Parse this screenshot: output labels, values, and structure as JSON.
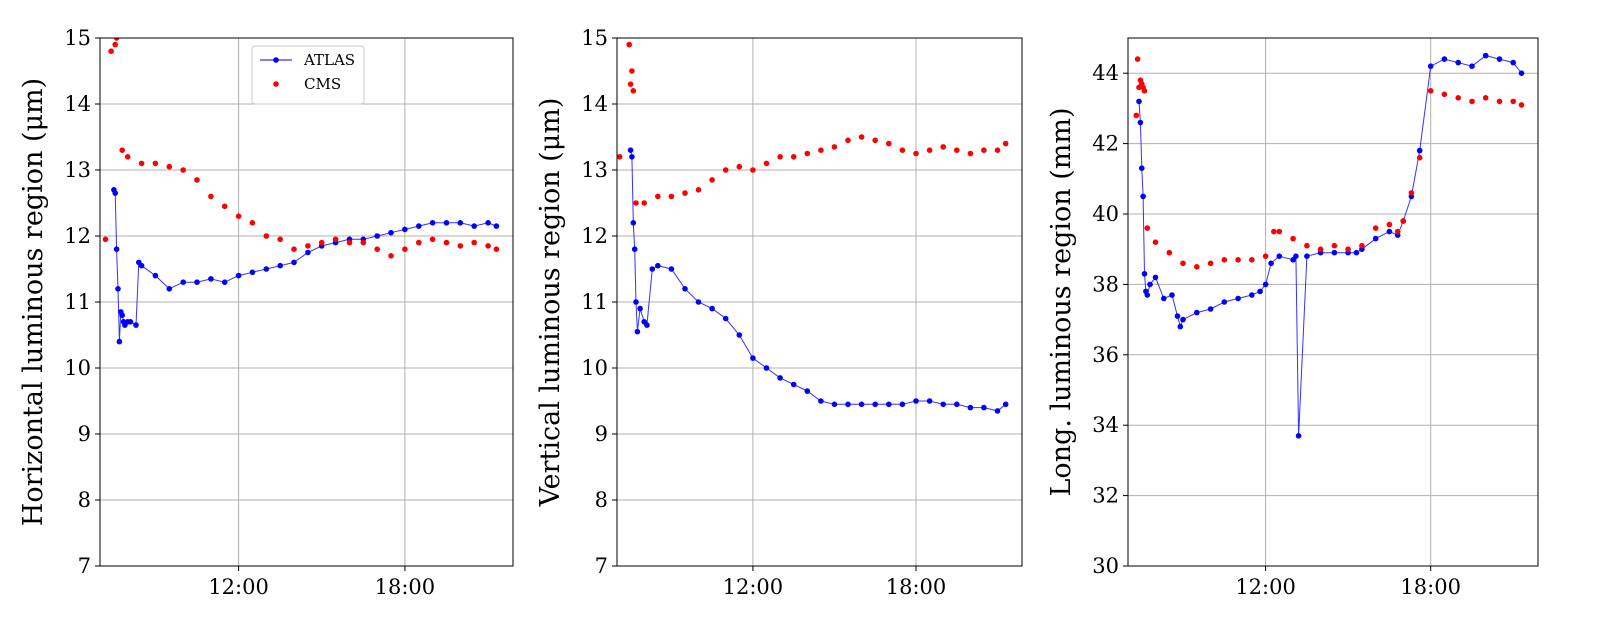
{
  "colors": {
    "atlas": "#0000ff",
    "cms": "#ff0000",
    "grid": "#b0b0b0"
  },
  "chart_data": [
    {
      "type": "line",
      "ylabel": "Horizontal luminous region (μm)",
      "ylim": [
        7,
        15
      ],
      "yticks": [
        "7",
        "8",
        "9",
        "10",
        "11",
        "12",
        "13",
        "14",
        "15"
      ],
      "xlim": [
        7.0,
        21.9
      ],
      "xticks": [
        {
          "hour": 12,
          "label": "12:00"
        },
        {
          "hour": 18,
          "label": "18:00"
        }
      ],
      "grid": true,
      "legend": {
        "placement": "top-center",
        "entries": [
          "ATLAS",
          "CMS"
        ]
      },
      "series": [
        {
          "name": "ATLAS",
          "style": "line-markers",
          "color": "#0000ff",
          "x": [
            7.5,
            7.55,
            7.6,
            7.65,
            7.7,
            7.75,
            7.8,
            7.85,
            7.9,
            8.0,
            8.1,
            8.3,
            8.4,
            8.5,
            9.0,
            9.5,
            10.0,
            10.5,
            11.0,
            11.5,
            12.0,
            12.5,
            13.0,
            13.5,
            14.0,
            14.5,
            15.0,
            15.5,
            16.0,
            16.5,
            17.0,
            17.5,
            18.0,
            18.5,
            19.0,
            19.5,
            20.0,
            20.5,
            21.0,
            21.3
          ],
          "y": [
            12.7,
            12.65,
            11.8,
            11.2,
            10.4,
            10.85,
            10.8,
            10.7,
            10.65,
            10.7,
            10.7,
            10.65,
            11.6,
            11.55,
            11.4,
            11.2,
            11.3,
            11.3,
            11.35,
            11.3,
            11.4,
            11.45,
            11.5,
            11.55,
            11.6,
            11.75,
            11.85,
            11.9,
            11.95,
            11.95,
            12.0,
            12.05,
            12.1,
            12.15,
            12.2,
            12.2,
            12.2,
            12.15,
            12.2,
            12.15
          ]
        },
        {
          "name": "CMS",
          "style": "markers",
          "color": "#ff0000",
          "x": [
            7.2,
            7.4,
            7.55,
            7.6,
            7.8,
            8.0,
            8.5,
            9.0,
            9.5,
            10.0,
            10.5,
            11.0,
            11.5,
            12.0,
            12.5,
            13.0,
            13.5,
            14.0,
            14.5,
            15.0,
            15.5,
            16.0,
            16.5,
            17.0,
            17.5,
            18.0,
            18.5,
            19.0,
            19.5,
            20.0,
            20.5,
            21.0,
            21.3
          ],
          "y": [
            11.95,
            14.8,
            14.9,
            15.0,
            13.3,
            13.2,
            13.1,
            13.1,
            13.05,
            13.0,
            12.85,
            12.6,
            12.45,
            12.3,
            12.2,
            12.0,
            11.95,
            11.8,
            11.85,
            11.9,
            11.95,
            11.9,
            11.9,
            11.8,
            11.7,
            11.8,
            11.9,
            11.95,
            11.9,
            11.85,
            11.9,
            11.85,
            11.8
          ]
        }
      ]
    },
    {
      "type": "line",
      "ylabel": "Vertical luminous region (μm)",
      "ylim": [
        7,
        15
      ],
      "yticks": [
        "7",
        "8",
        "9",
        "10",
        "11",
        "12",
        "13",
        "14",
        "15"
      ],
      "xlim": [
        7.0,
        21.9
      ],
      "xticks": [
        {
          "hour": 12,
          "label": "12:00"
        },
        {
          "hour": 18,
          "label": "18:00"
        }
      ],
      "grid": true,
      "series": [
        {
          "name": "ATLAS",
          "style": "line-markers",
          "color": "#0000ff",
          "x": [
            7.5,
            7.55,
            7.6,
            7.65,
            7.7,
            7.75,
            7.85,
            8.0,
            8.1,
            8.3,
            8.5,
            9.0,
            9.5,
            10.0,
            10.5,
            11.0,
            11.5,
            12.0,
            12.5,
            13.0,
            13.5,
            14.0,
            14.5,
            15.0,
            15.5,
            16.0,
            16.5,
            17.0,
            17.5,
            18.0,
            18.5,
            19.0,
            19.5,
            20.0,
            20.5,
            21.0,
            21.3
          ],
          "y": [
            13.3,
            13.2,
            12.2,
            11.8,
            11.0,
            10.55,
            10.9,
            10.7,
            10.65,
            11.5,
            11.55,
            11.5,
            11.2,
            11.0,
            10.9,
            10.75,
            10.5,
            10.15,
            10.0,
            9.85,
            9.75,
            9.65,
            9.5,
            9.45,
            9.45,
            9.45,
            9.45,
            9.45,
            9.45,
            9.5,
            9.5,
            9.45,
            9.45,
            9.4,
            9.4,
            9.35,
            9.45
          ]
        },
        {
          "name": "CMS",
          "style": "markers",
          "color": "#ff0000",
          "x": [
            7.1,
            7.45,
            7.5,
            7.55,
            7.6,
            7.7,
            8.0,
            8.5,
            9.0,
            9.5,
            10.0,
            10.5,
            11.0,
            11.5,
            12.0,
            12.5,
            13.0,
            13.5,
            14.0,
            14.5,
            15.0,
            15.5,
            16.0,
            16.5,
            17.0,
            17.5,
            18.0,
            18.5,
            19.0,
            19.5,
            20.0,
            20.5,
            21.0,
            21.3
          ],
          "y": [
            13.2,
            14.9,
            14.3,
            14.5,
            14.2,
            12.5,
            12.5,
            12.6,
            12.6,
            12.65,
            12.7,
            12.85,
            13.0,
            13.05,
            13.0,
            13.1,
            13.2,
            13.2,
            13.25,
            13.3,
            13.35,
            13.45,
            13.5,
            13.45,
            13.4,
            13.3,
            13.25,
            13.3,
            13.35,
            13.3,
            13.25,
            13.3,
            13.3,
            13.4
          ]
        }
      ]
    },
    {
      "type": "line",
      "ylabel": "Long. luminous region (mm)",
      "ylim": [
        30,
        45
      ],
      "yticks": [
        "30",
        "32",
        "34",
        "36",
        "38",
        "40",
        "42",
        "44"
      ],
      "xlim": [
        7.0,
        21.9
      ],
      "xticks": [
        {
          "hour": 12,
          "label": "12:00"
        },
        {
          "hour": 18,
          "label": "18:00"
        }
      ],
      "grid": true,
      "series": [
        {
          "name": "ATLAS",
          "style": "line-markers",
          "color": "#0000ff",
          "x": [
            7.4,
            7.45,
            7.5,
            7.55,
            7.6,
            7.65,
            7.7,
            7.8,
            8.0,
            8.3,
            8.6,
            8.8,
            8.9,
            9.0,
            9.5,
            10.0,
            10.5,
            11.0,
            11.5,
            11.8,
            12.0,
            12.2,
            12.5,
            13.0,
            13.1,
            13.2,
            13.5,
            14.0,
            14.5,
            15.0,
            15.3,
            15.5,
            16.0,
            16.5,
            16.8,
            17.0,
            17.3,
            17.6,
            18.0,
            18.5,
            19.0,
            19.5,
            20.0,
            20.5,
            21.0,
            21.3
          ],
          "y": [
            43.2,
            42.6,
            41.3,
            40.5,
            38.3,
            37.8,
            37.7,
            38.0,
            38.2,
            37.6,
            37.7,
            37.1,
            36.8,
            37.0,
            37.2,
            37.3,
            37.5,
            37.6,
            37.7,
            37.8,
            38.0,
            38.6,
            38.8,
            38.7,
            38.8,
            33.7,
            38.8,
            38.9,
            38.9,
            38.9,
            38.9,
            39.0,
            39.3,
            39.5,
            39.4,
            39.8,
            40.5,
            41.8,
            44.2,
            44.4,
            44.3,
            44.2,
            44.5,
            44.4,
            44.3,
            44.0
          ]
        },
        {
          "name": "CMS",
          "style": "markers",
          "color": "#ff0000",
          "x": [
            7.3,
            7.35,
            7.4,
            7.45,
            7.5,
            7.55,
            7.6,
            7.7,
            8.0,
            8.5,
            9.0,
            9.5,
            10.0,
            10.5,
            11.0,
            11.5,
            12.0,
            12.3,
            12.5,
            13.0,
            13.5,
            14.0,
            14.5,
            15.0,
            15.5,
            16.0,
            16.5,
            16.8,
            17.0,
            17.3,
            17.6,
            18.0,
            18.5,
            19.0,
            19.5,
            20.0,
            20.5,
            21.0,
            21.3
          ],
          "y": [
            42.8,
            44.4,
            43.6,
            43.8,
            43.7,
            43.6,
            43.5,
            39.6,
            39.2,
            38.9,
            38.6,
            38.5,
            38.6,
            38.7,
            38.7,
            38.7,
            38.8,
            39.5,
            39.5,
            39.3,
            39.1,
            39.0,
            39.1,
            39.0,
            39.1,
            39.6,
            39.7,
            39.5,
            39.8,
            40.6,
            41.6,
            43.5,
            43.4,
            43.3,
            43.2,
            43.3,
            43.2,
            43.2,
            43.1
          ]
        }
      ]
    }
  ]
}
